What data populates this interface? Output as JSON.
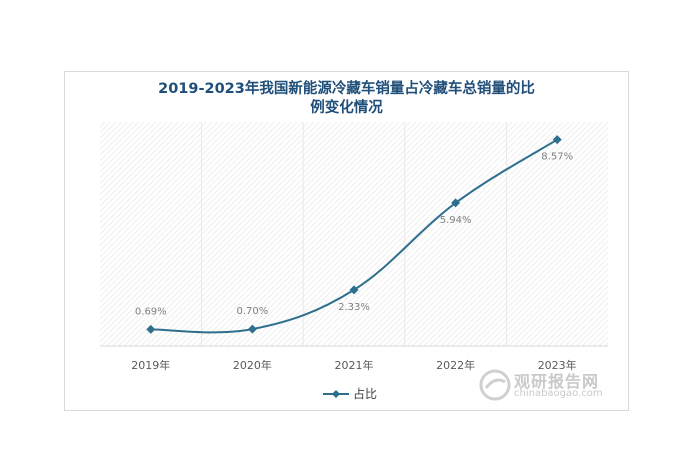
{
  "chart_data": {
    "type": "line",
    "title_line1": "2019-2023年我国新能源冷藏车销量占冷藏车总销量的比",
    "title_line2": "例变化情况",
    "categories": [
      "2019年",
      "2020年",
      "2021年",
      "2022年",
      "2023年"
    ],
    "series": [
      {
        "name": "占比",
        "values": [
          0.69,
          0.7,
          2.33,
          5.94,
          8.57
        ],
        "labels": [
          "0.69%",
          "0.70%",
          "2.33%",
          "5.94%",
          "8.57%"
        ],
        "color": "#2e6f8e"
      }
    ],
    "ylim": [
      0,
      9.3
    ],
    "grid": true,
    "legend": "bottom"
  },
  "watermark": {
    "name": "观研报告网",
    "url": "chinabaogao.com"
  }
}
